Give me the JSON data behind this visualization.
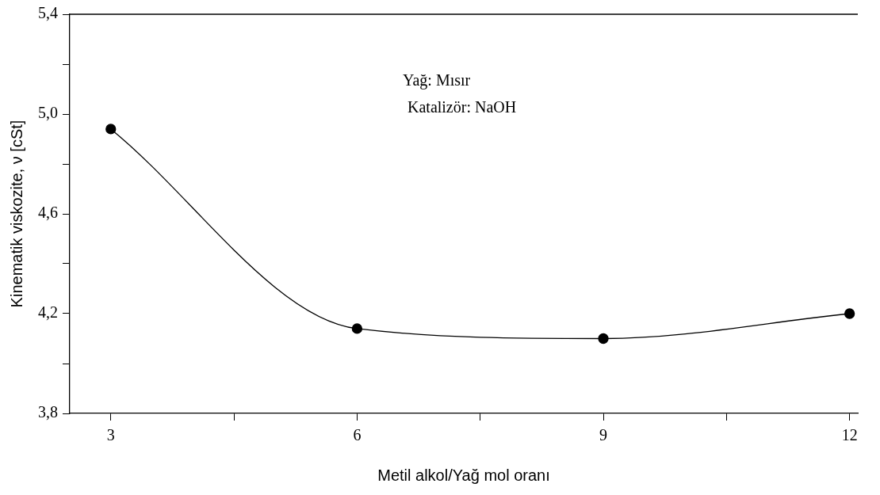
{
  "chart_data": {
    "type": "line",
    "xlabel": "Metil alkol/Yağ mol oranı",
    "ylabel": "Kinematik viskozite, ν [cSt]",
    "x": [
      3,
      6,
      9,
      12
    ],
    "series": [
      {
        "color": "#000000",
        "values": [
          4.94,
          4.14,
          4.1,
          4.2
        ]
      }
    ],
    "xlim": [
      2.5,
      12.1
    ],
    "xticks": [
      3,
      {
        "value": 4.5,
        "label": null
      },
      6,
      {
        "value": 7.5,
        "label": null
      },
      9,
      {
        "value": 10.5,
        "label": null
      },
      12
    ],
    "ylim": [
      3.8,
      5.4
    ],
    "yticks": [
      {
        "value": 3.8,
        "label": "3,8"
      },
      {
        "value": 4.0,
        "label": null
      },
      {
        "value": 4.2,
        "label": "4,2"
      },
      {
        "value": 4.4,
        "label": null
      },
      {
        "value": 4.6,
        "label": "4,6"
      },
      {
        "value": 4.8,
        "label": null
      },
      {
        "value": 5.0,
        "label": "5,0"
      },
      {
        "value": 5.2,
        "label": null
      },
      {
        "value": 5.4,
        "label": "5,4"
      }
    ],
    "annotations": [
      "Yağ: Mısır",
      "Katalizör: NaOH"
    ],
    "marker": "circle",
    "line_style": "solid",
    "grid": false,
    "legend": false
  }
}
